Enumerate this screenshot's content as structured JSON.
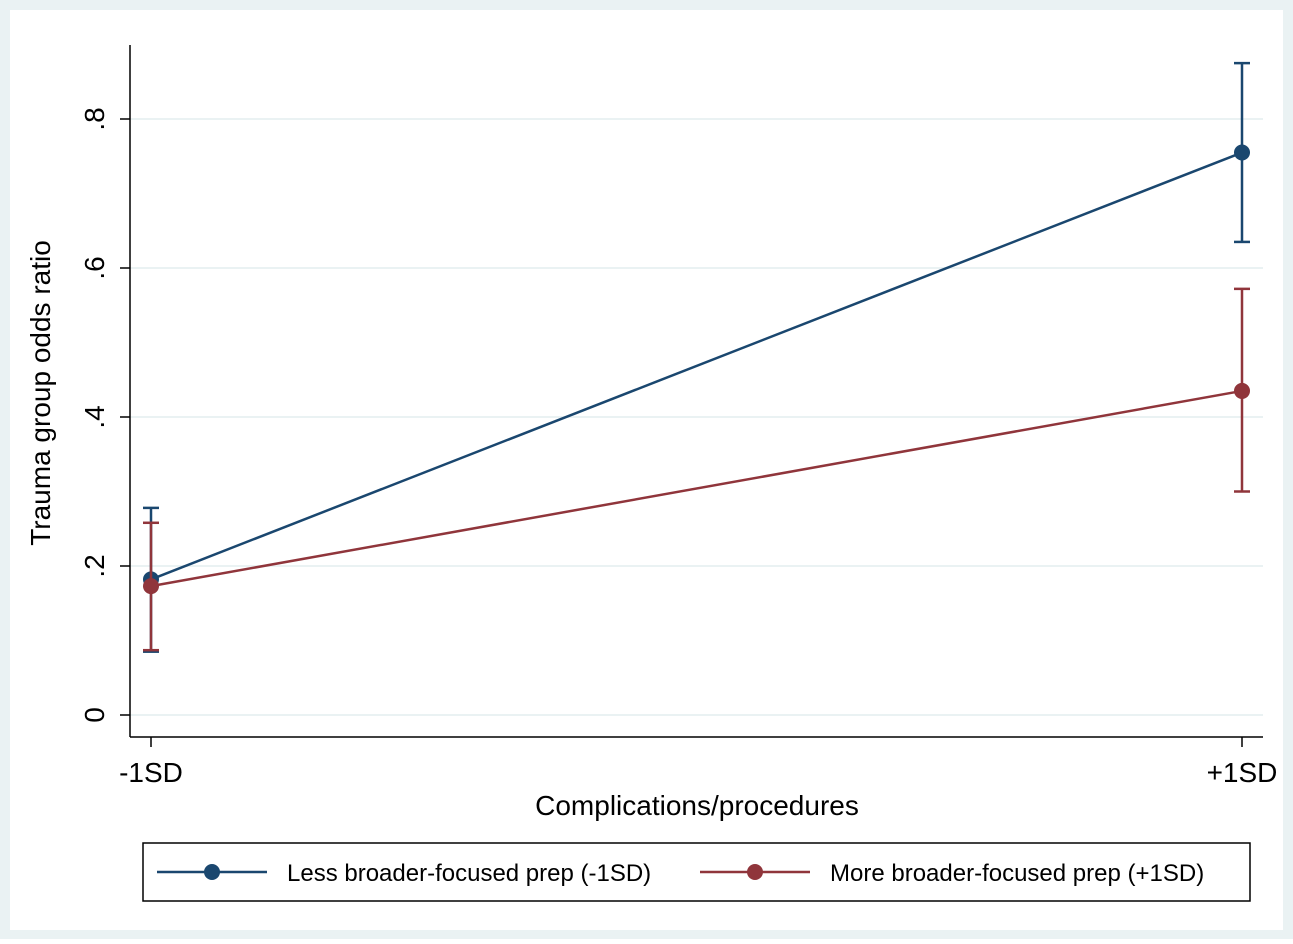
{
  "chart_data": {
    "type": "line",
    "title": "",
    "xlabel": "Complications/procedures",
    "ylabel": "Trauma group odds ratio",
    "categories": [
      "-1SD",
      "+1SD"
    ],
    "ylim": [
      0,
      0.9
    ],
    "yticks": [
      {
        "value": 0,
        "label": "0"
      },
      {
        "value": 0.2,
        "label": ".2"
      },
      {
        "value": 0.4,
        "label": ".4"
      },
      {
        "value": 0.6,
        "label": ".6"
      },
      {
        "value": 0.8,
        "label": ".8"
      }
    ],
    "grid": true,
    "legend_position": "bottom",
    "series": [
      {
        "name": "Less broader-focused prep (-1SD)",
        "color": "#1a476f",
        "values": [
          0.182,
          0.755
        ],
        "ci_low": [
          0.085,
          0.635
        ],
        "ci_high": [
          0.278,
          0.875
        ]
      },
      {
        "name": "More broader-focused prep (+1SD)",
        "color": "#90353b",
        "values": [
          0.173,
          0.435
        ],
        "ci_low": [
          0.087,
          0.3
        ],
        "ci_high": [
          0.258,
          0.572
        ]
      }
    ]
  },
  "colors": {
    "outer_background": "#eaf2f3",
    "plot_background": "#ffffff",
    "gridline": "#eaf2f3",
    "axis": "#000000"
  }
}
